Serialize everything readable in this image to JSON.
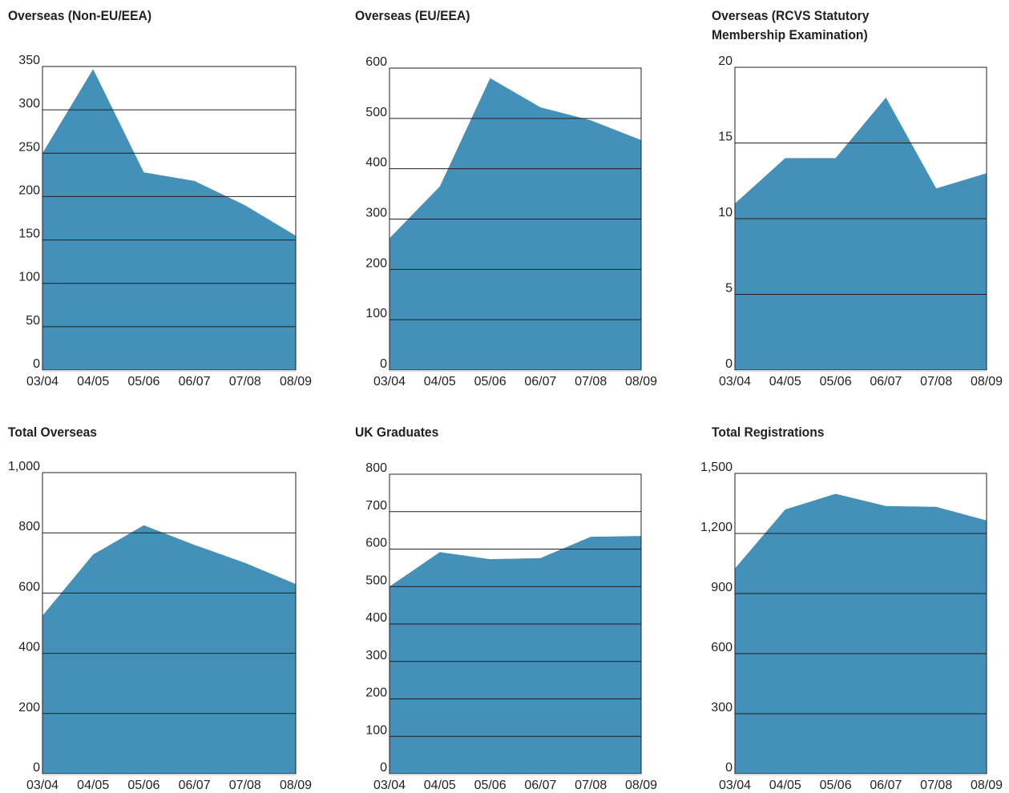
{
  "colors": {
    "area": "#4390b8",
    "grid": "#231f20",
    "text": "#231f20"
  },
  "chart_data": [
    {
      "type": "area",
      "title": [
        "Overseas (Non-EU/EEA)"
      ],
      "categories": [
        "03/04",
        "04/05",
        "05/06",
        "06/07",
        "07/08",
        "08/09"
      ],
      "values": [
        250,
        347,
        228,
        218,
        190,
        155
      ],
      "ylim": [
        0,
        350
      ],
      "yticks": [
        0,
        50,
        100,
        150,
        200,
        250,
        300,
        350
      ],
      "ytick_labels": [
        "0",
        "50",
        "100",
        "150",
        "200",
        "250",
        "300",
        "350"
      ],
      "grid": true
    },
    {
      "type": "area",
      "title": [
        "Overseas (EU/EEA)"
      ],
      "categories": [
        "03/04",
        "04/05",
        "05/06",
        "06/07",
        "07/08",
        "08/09"
      ],
      "values": [
        262,
        365,
        580,
        522,
        496,
        457
      ],
      "ylim": [
        0,
        600
      ],
      "yticks": [
        0,
        100,
        200,
        300,
        400,
        500,
        600
      ],
      "ytick_labels": [
        "0",
        "100",
        "200",
        "300",
        "400",
        "500",
        "600"
      ],
      "grid": true
    },
    {
      "type": "area",
      "title": [
        "Overseas (RCVS Statutory",
        "Membership Examination)"
      ],
      "categories": [
        "03/04",
        "04/05",
        "05/06",
        "06/07",
        "07/08",
        "08/09"
      ],
      "values": [
        11,
        14,
        14,
        18,
        12,
        13
      ],
      "ylim": [
        0,
        20
      ],
      "yticks": [
        0,
        5,
        10,
        15,
        20
      ],
      "ytick_labels": [
        "0",
        "5",
        "10",
        "15",
        "20"
      ],
      "grid": true
    },
    {
      "type": "area",
      "title": [
        "Total Overseas"
      ],
      "categories": [
        "03/04",
        "04/05",
        "05/06",
        "06/07",
        "07/08",
        "08/09"
      ],
      "values": [
        525,
        728,
        825,
        760,
        700,
        630
      ],
      "ylim": [
        0,
        1000
      ],
      "yticks": [
        0,
        200,
        400,
        600,
        800,
        1000
      ],
      "ytick_labels": [
        "0",
        "200",
        "400",
        "600",
        "800",
        "1,000"
      ],
      "grid": true
    },
    {
      "type": "area",
      "title": [
        "UK Graduates"
      ],
      "categories": [
        "03/04",
        "04/05",
        "05/06",
        "06/07",
        "07/08",
        "08/09"
      ],
      "values": [
        500,
        592,
        573,
        576,
        633,
        635
      ],
      "ylim": [
        0,
        800
      ],
      "yticks": [
        0,
        100,
        200,
        300,
        400,
        500,
        600,
        700,
        800
      ],
      "ytick_labels": [
        "0",
        "100",
        "200",
        "300",
        "400",
        "500",
        "600",
        "700",
        "800"
      ],
      "grid": true
    },
    {
      "type": "area",
      "title": [
        "Total Registrations"
      ],
      "categories": [
        "03/04",
        "04/05",
        "05/06",
        "06/07",
        "07/08",
        "08/09"
      ],
      "values": [
        1025,
        1320,
        1398,
        1337,
        1333,
        1265
      ],
      "ylim": [
        0,
        1500
      ],
      "yticks": [
        0,
        300,
        600,
        900,
        1200,
        1500
      ],
      "ytick_labels": [
        "0",
        "300",
        "600",
        "900",
        "1,200",
        "1,500"
      ],
      "grid": true
    }
  ]
}
